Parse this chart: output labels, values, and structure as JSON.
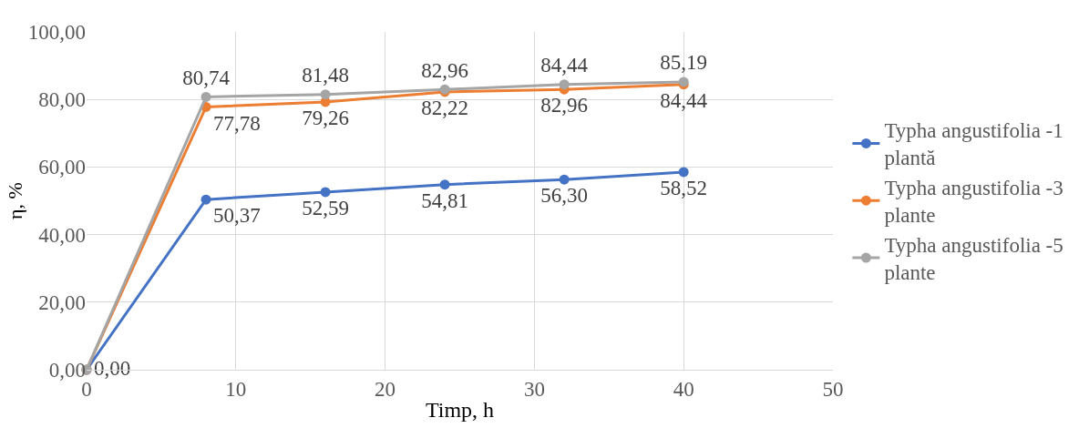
{
  "chart_data": {
    "type": "line",
    "xlabel": "Timp, h",
    "ylabel": "η, %",
    "x": [
      0,
      8,
      16,
      24,
      32,
      40
    ],
    "series": [
      {
        "name": "Typha angustifolia -1 plantă",
        "color": "#4472c4",
        "values": [
          0,
          50.37,
          52.59,
          54.81,
          56.3,
          58.52
        ],
        "value_labels": [
          "0,00",
          "50,37",
          "52,59",
          "54,81",
          "56,30",
          "58,52"
        ]
      },
      {
        "name": "Typha angustifolia -3 plante",
        "color": "#ed7d31",
        "values": [
          0,
          77.78,
          79.26,
          82.22,
          82.96,
          84.44
        ],
        "value_labels": [
          null,
          "77,78",
          "79,26",
          "82,22",
          "82,96",
          "84,44"
        ]
      },
      {
        "name": "Typha angustifolia -5 plante",
        "color": "#a5a5a5",
        "values": [
          0,
          80.74,
          81.48,
          82.96,
          84.44,
          85.19
        ],
        "value_labels": [
          null,
          "80,74",
          "81,48",
          "82,96",
          "84,44",
          "85,19"
        ]
      }
    ],
    "xlim": [
      0,
      50
    ],
    "xticks": [
      0,
      10,
      20,
      30,
      40,
      50
    ],
    "ylim": [
      0,
      100
    ],
    "yticks": [
      {
        "value": 0,
        "label": "0,00"
      },
      {
        "value": 20,
        "label": "20,00"
      },
      {
        "value": 40,
        "label": "40,00"
      },
      {
        "value": 60,
        "label": "60,00"
      },
      {
        "value": 80,
        "label": "80,00"
      },
      {
        "value": 100,
        "label": "100,00"
      }
    ],
    "grid": true,
    "legend": "right",
    "marker": "circle",
    "line_style": "solid"
  }
}
